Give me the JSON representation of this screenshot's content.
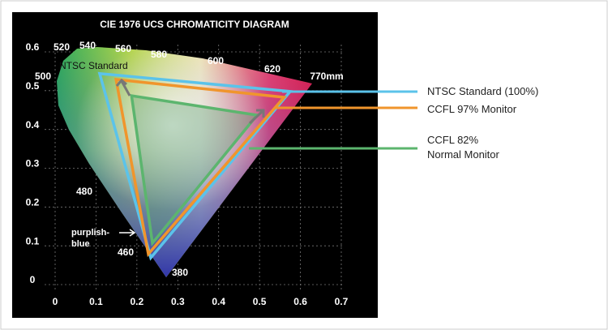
{
  "chart_data": {
    "type": "gamut",
    "title": "CIE 1976 UCS CHROMATICITY DIAGRAM",
    "xlim": [
      0,
      0.7
    ],
    "ylim": [
      0,
      0.6
    ],
    "xticks": [
      0,
      0.1,
      0.2,
      0.3,
      0.4,
      0.5,
      0.6,
      0.7
    ],
    "yticks": [
      0,
      0.1,
      0.2,
      0.3,
      0.4,
      0.5,
      0.6
    ],
    "grid": true,
    "series": [
      {
        "name": "NTSC Standard (100%)",
        "color": "#5bc3ea",
        "x": [
          0.109,
          0.575,
          0.234
        ],
        "y": [
          0.544,
          0.498,
          0.069
        ]
      },
      {
        "name": "CCFL 97% Monitor",
        "color": "#f0952c",
        "x": [
          0.149,
          0.56,
          0.228
        ],
        "y": [
          0.529,
          0.483,
          0.079
        ]
      },
      {
        "name": "CCFL 82%\nNormal Monitor",
        "color": "#5cb56e",
        "x": [
          0.187,
          0.494,
          0.238
        ],
        "y": [
          0.487,
          0.437,
          0.107
        ]
      }
    ],
    "wavelength_labels": [
      "520",
      "540",
      "560",
      "580",
      "600",
      "620",
      "770mm",
      "500",
      "480",
      "460",
      "380"
    ],
    "annotations": [
      "NTSC Standard",
      "purplish-\nblue"
    ]
  }
}
